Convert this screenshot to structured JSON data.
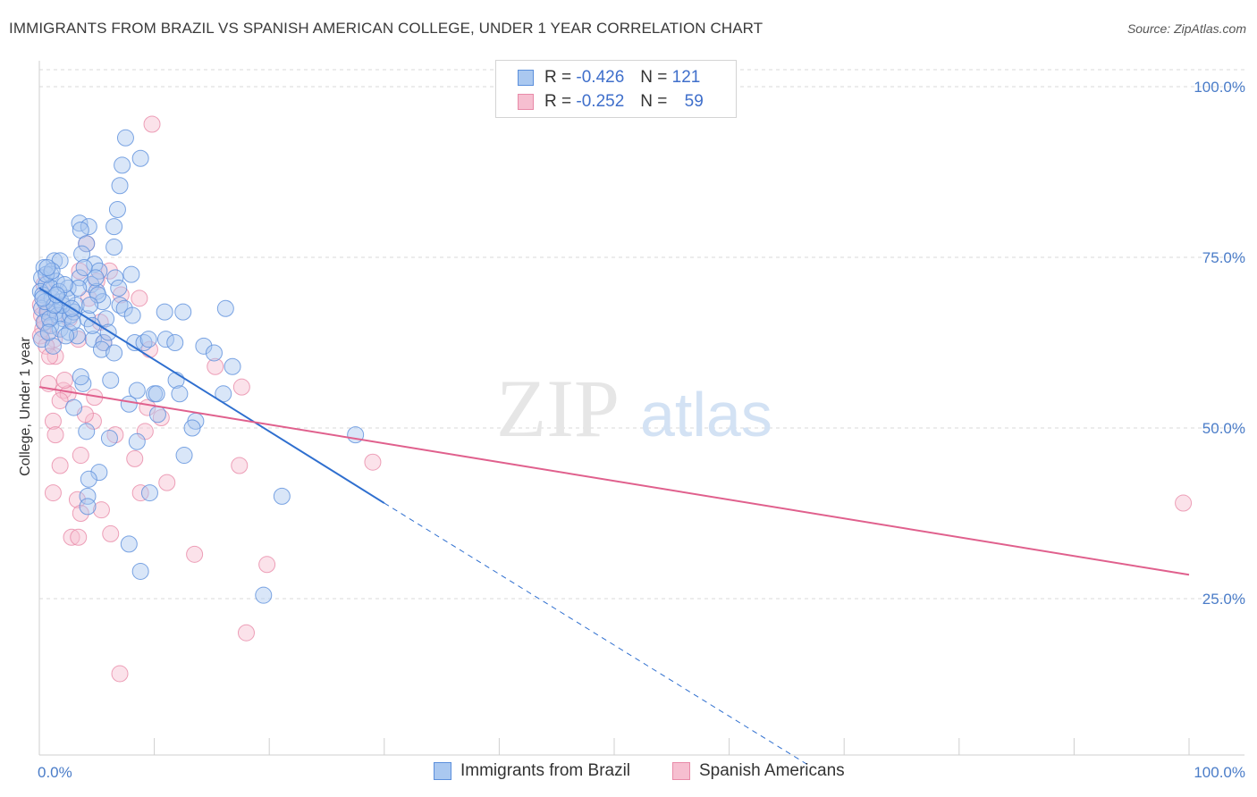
{
  "title": "IMMIGRANTS FROM BRAZIL VS SPANISH AMERICAN COLLEGE, UNDER 1 YEAR CORRELATION CHART",
  "source": "Source: ZipAtlas.com",
  "watermark": {
    "zip": "ZIP",
    "atlas": "atlas"
  },
  "legend": [
    {
      "r_label": "R =",
      "r_value": "-0.426",
      "n_label": "N =",
      "n_value": "121"
    },
    {
      "r_label": "R =",
      "r_value": "-0.252",
      "n_label": "N =",
      "n_value": "59"
    }
  ],
  "colors": {
    "blue": "#5b8fdc",
    "blue_fill": "#aac8f0",
    "blue_line": "#2f6fcf",
    "pink": "#e88aa8",
    "pink_fill": "#f6bfd0",
    "pink_line": "#e0608d",
    "tick_text": "#4a7cc8",
    "grid": "#d9d9d9"
  },
  "chart_data": {
    "type": "scatter",
    "title": "IMMIGRANTS FROM BRAZIL VS SPANISH AMERICAN COLLEGE, UNDER 1 YEAR CORRELATION CHART",
    "xlabel": "",
    "ylabel": "College, Under 1 year",
    "xlim": [
      0,
      100
    ],
    "ylim": [
      0,
      100
    ],
    "x_tick_labels": [
      "0.0%",
      "100.0%"
    ],
    "y_ticks": [
      25,
      50,
      75,
      100
    ],
    "y_tick_labels": [
      "25.0%",
      "50.0%",
      "75.0%",
      "100.0%"
    ],
    "grid": true,
    "legend_position": "top-center",
    "series": [
      {
        "name": "Immigrants from Brazil",
        "color": "#5b8fdc",
        "trend": {
          "x": [
            0,
            30
          ],
          "y": [
            70.5,
            39.0
          ],
          "dashed_to_x": 67,
          "dashed_to_y": 0.5
        },
        "points": [
          [
            7.5,
            92.5
          ],
          [
            8.8,
            89.5
          ],
          [
            7.2,
            88.5
          ],
          [
            7.0,
            85.5
          ],
          [
            6.8,
            82.0
          ],
          [
            6.5,
            79.5
          ],
          [
            3.5,
            80.0
          ],
          [
            4.3,
            79.5
          ],
          [
            3.6,
            79.0
          ],
          [
            4.1,
            77.0
          ],
          [
            6.5,
            76.5
          ],
          [
            3.7,
            75.5
          ],
          [
            1.3,
            74.5
          ],
          [
            1.8,
            74.5
          ],
          [
            0.4,
            73.5
          ],
          [
            4.8,
            74.0
          ],
          [
            5.2,
            73.0
          ],
          [
            8.0,
            72.5
          ],
          [
            0.2,
            72.0
          ],
          [
            1.0,
            72.5
          ],
          [
            1.5,
            71.5
          ],
          [
            3.5,
            72.0
          ],
          [
            6.6,
            72.0
          ],
          [
            0.6,
            71.0
          ],
          [
            2.5,
            70.5
          ],
          [
            4.5,
            71.0
          ],
          [
            5.0,
            70.0
          ],
          [
            0.1,
            70.0
          ],
          [
            0.3,
            69.5
          ],
          [
            1.1,
            69.0
          ],
          [
            1.9,
            68.5
          ],
          [
            3.2,
            68.0
          ],
          [
            5.5,
            68.5
          ],
          [
            7.0,
            68.0
          ],
          [
            7.4,
            67.5
          ],
          [
            8.1,
            66.5
          ],
          [
            0.2,
            67.5
          ],
          [
            0.7,
            67.0
          ],
          [
            1.4,
            67.0
          ],
          [
            1.6,
            66.5
          ],
          [
            2.1,
            66.0
          ],
          [
            2.7,
            66.5
          ],
          [
            3.0,
            67.0
          ],
          [
            4.2,
            66.0
          ],
          [
            5.8,
            66.0
          ],
          [
            10.9,
            67.0
          ],
          [
            12.5,
            67.0
          ],
          [
            16.2,
            67.5
          ],
          [
            0.4,
            65.5
          ],
          [
            1.0,
            65.0
          ],
          [
            1.8,
            64.5
          ],
          [
            2.6,
            64.0
          ],
          [
            3.3,
            63.5
          ],
          [
            4.7,
            63.0
          ],
          [
            5.6,
            62.5
          ],
          [
            8.3,
            62.5
          ],
          [
            9.1,
            62.5
          ],
          [
            11.0,
            63.0
          ],
          [
            11.8,
            62.5
          ],
          [
            14.3,
            62.0
          ],
          [
            0.2,
            63.0
          ],
          [
            1.2,
            62.0
          ],
          [
            5.4,
            61.5
          ],
          [
            6.5,
            61.0
          ],
          [
            15.2,
            61.0
          ],
          [
            16.8,
            59.0
          ],
          [
            6.2,
            57.0
          ],
          [
            11.9,
            57.0
          ],
          [
            3.8,
            56.5
          ],
          [
            8.5,
            55.5
          ],
          [
            3.6,
            57.5
          ],
          [
            10.0,
            55.0
          ],
          [
            10.2,
            55.0
          ],
          [
            12.2,
            55.0
          ],
          [
            16.0,
            55.0
          ],
          [
            7.8,
            53.5
          ],
          [
            3.0,
            53.0
          ],
          [
            10.3,
            52.0
          ],
          [
            13.6,
            51.0
          ],
          [
            13.3,
            50.0
          ],
          [
            4.1,
            49.5
          ],
          [
            27.5,
            49.0
          ],
          [
            6.1,
            48.5
          ],
          [
            8.5,
            48.0
          ],
          [
            12.6,
            46.0
          ],
          [
            5.2,
            43.5
          ],
          [
            4.3,
            42.5
          ],
          [
            4.2,
            40.0
          ],
          [
            9.6,
            40.5
          ],
          [
            21.1,
            40.0
          ],
          [
            4.2,
            38.5
          ],
          [
            7.8,
            33.0
          ],
          [
            8.8,
            29.0
          ],
          [
            19.5,
            25.5
          ],
          [
            1.0,
            70.5
          ],
          [
            2.0,
            68.0
          ],
          [
            2.4,
            69.0
          ],
          [
            0.5,
            68.5
          ],
          [
            1.7,
            70.0
          ],
          [
            3.4,
            70.5
          ],
          [
            0.9,
            66.0
          ],
          [
            2.3,
            63.5
          ],
          [
            4.6,
            65.0
          ],
          [
            6.0,
            64.0
          ],
          [
            9.5,
            63.0
          ],
          [
            0.8,
            64.0
          ],
          [
            2.9,
            65.5
          ],
          [
            1.3,
            68.0
          ],
          [
            0.6,
            72.5
          ],
          [
            1.1,
            73.0
          ],
          [
            3.9,
            73.5
          ],
          [
            4.9,
            72.0
          ],
          [
            2.2,
            71.0
          ],
          [
            0.3,
            69.0
          ],
          [
            5.1,
            69.5
          ],
          [
            6.9,
            70.5
          ],
          [
            1.5,
            69.5
          ],
          [
            2.8,
            67.5
          ],
          [
            0.7,
            73.5
          ],
          [
            4.4,
            68.0
          ]
        ]
      },
      {
        "name": "Spanish Americans",
        "color": "#e88aa8",
        "trend": {
          "x": [
            0,
            100
          ],
          "y": [
            56.0,
            28.5
          ]
        },
        "points": [
          [
            9.8,
            94.5
          ],
          [
            4.1,
            77.0
          ],
          [
            3.5,
            73.0
          ],
          [
            5.0,
            71.5
          ],
          [
            6.1,
            73.0
          ],
          [
            0.4,
            71.0
          ],
          [
            4.3,
            69.0
          ],
          [
            7.1,
            69.5
          ],
          [
            8.7,
            69.0
          ],
          [
            0.1,
            68.0
          ],
          [
            0.2,
            66.5
          ],
          [
            0.8,
            67.0
          ],
          [
            2.6,
            66.0
          ],
          [
            5.3,
            65.5
          ],
          [
            0.3,
            64.5
          ],
          [
            0.1,
            63.5
          ],
          [
            1.3,
            63.0
          ],
          [
            3.4,
            63.0
          ],
          [
            5.6,
            62.5
          ],
          [
            9.6,
            61.5
          ],
          [
            0.6,
            62.0
          ],
          [
            1.4,
            60.5
          ],
          [
            15.3,
            59.0
          ],
          [
            0.8,
            56.5
          ],
          [
            17.6,
            56.0
          ],
          [
            2.1,
            55.5
          ],
          [
            2.5,
            55.0
          ],
          [
            1.8,
            54.0
          ],
          [
            4.8,
            54.5
          ],
          [
            9.4,
            53.0
          ],
          [
            1.2,
            51.0
          ],
          [
            4.7,
            51.0
          ],
          [
            9.2,
            49.5
          ],
          [
            1.4,
            49.0
          ],
          [
            6.6,
            49.0
          ],
          [
            3.6,
            46.0
          ],
          [
            8.3,
            45.5
          ],
          [
            1.8,
            44.5
          ],
          [
            17.4,
            44.5
          ],
          [
            29.0,
            45.0
          ],
          [
            11.1,
            42.0
          ],
          [
            8.8,
            40.5
          ],
          [
            1.2,
            40.5
          ],
          [
            3.3,
            39.5
          ],
          [
            5.4,
            38.0
          ],
          [
            3.6,
            37.5
          ],
          [
            6.2,
            34.5
          ],
          [
            2.8,
            34.0
          ],
          [
            3.4,
            34.0
          ],
          [
            13.5,
            31.5
          ],
          [
            19.8,
            30.0
          ],
          [
            18.0,
            20.0
          ],
          [
            7.0,
            14.0
          ],
          [
            99.5,
            39.0
          ],
          [
            0.9,
            60.5
          ],
          [
            2.2,
            57.0
          ],
          [
            0.5,
            65.5
          ],
          [
            4.0,
            52.0
          ],
          [
            10.6,
            51.5
          ]
        ]
      }
    ]
  }
}
